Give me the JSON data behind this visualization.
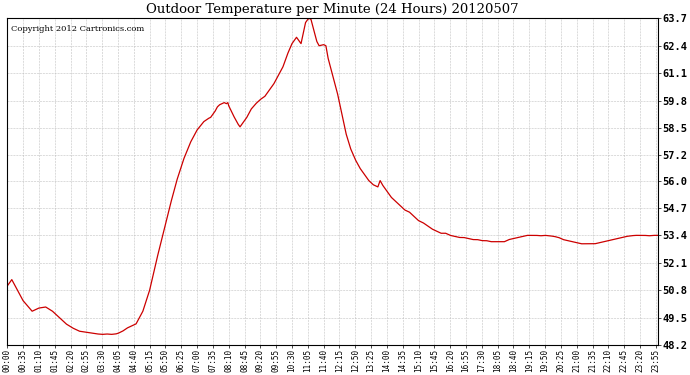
{
  "title": "Outdoor Temperature per Minute (24 Hours) 20120507",
  "copyright_text": "Copyright 2012 Cartronics.com",
  "line_color": "#cc0000",
  "background_color": "#ffffff",
  "plot_bg_color": "#ffffff",
  "grid_color": "#bbbbbb",
  "yticks": [
    48.2,
    49.5,
    50.8,
    52.1,
    53.4,
    54.7,
    56.0,
    57.2,
    58.5,
    59.8,
    61.1,
    62.4,
    63.7
  ],
  "ymin": 48.2,
  "ymax": 63.7,
  "key_points_minutes": [
    [
      0,
      51.0
    ],
    [
      10,
      51.3
    ],
    [
      20,
      50.9
    ],
    [
      35,
      50.3
    ],
    [
      55,
      49.8
    ],
    [
      70,
      49.95
    ],
    [
      85,
      50.0
    ],
    [
      100,
      49.8
    ],
    [
      115,
      49.5
    ],
    [
      130,
      49.2
    ],
    [
      145,
      49.0
    ],
    [
      160,
      48.85
    ],
    [
      175,
      48.8
    ],
    [
      190,
      48.75
    ],
    [
      200,
      48.72
    ],
    [
      210,
      48.7
    ],
    [
      220,
      48.72
    ],
    [
      230,
      48.7
    ],
    [
      240,
      48.72
    ],
    [
      245,
      48.75
    ],
    [
      255,
      48.85
    ],
    [
      265,
      49.0
    ],
    [
      275,
      49.1
    ],
    [
      285,
      49.2
    ],
    [
      300,
      49.8
    ],
    [
      315,
      50.8
    ],
    [
      330,
      52.2
    ],
    [
      345,
      53.5
    ],
    [
      360,
      54.8
    ],
    [
      375,
      56.0
    ],
    [
      390,
      57.0
    ],
    [
      405,
      57.8
    ],
    [
      420,
      58.4
    ],
    [
      435,
      58.8
    ],
    [
      445,
      58.95
    ],
    [
      450,
      59.0
    ],
    [
      460,
      59.3
    ],
    [
      465,
      59.5
    ],
    [
      470,
      59.6
    ],
    [
      475,
      59.65
    ],
    [
      480,
      59.7
    ],
    [
      485,
      59.65
    ],
    [
      488,
      59.7
    ],
    [
      490,
      59.55
    ],
    [
      500,
      59.1
    ],
    [
      510,
      58.7
    ],
    [
      515,
      58.55
    ],
    [
      520,
      58.7
    ],
    [
      530,
      59.0
    ],
    [
      540,
      59.4
    ],
    [
      550,
      59.65
    ],
    [
      560,
      59.85
    ],
    [
      570,
      60.0
    ],
    [
      580,
      60.3
    ],
    [
      590,
      60.6
    ],
    [
      600,
      61.0
    ],
    [
      610,
      61.4
    ],
    [
      620,
      62.0
    ],
    [
      630,
      62.5
    ],
    [
      640,
      62.8
    ],
    [
      650,
      62.5
    ],
    [
      655,
      63.0
    ],
    [
      660,
      63.5
    ],
    [
      665,
      63.65
    ],
    [
      668,
      63.7
    ],
    [
      672,
      63.65
    ],
    [
      675,
      63.4
    ],
    [
      680,
      63.0
    ],
    [
      685,
      62.6
    ],
    [
      690,
      62.4
    ],
    [
      700,
      62.45
    ],
    [
      705,
      62.4
    ],
    [
      710,
      61.8
    ],
    [
      720,
      61.0
    ],
    [
      730,
      60.2
    ],
    [
      740,
      59.2
    ],
    [
      750,
      58.2
    ],
    [
      760,
      57.5
    ],
    [
      770,
      57.0
    ],
    [
      780,
      56.6
    ],
    [
      790,
      56.3
    ],
    [
      800,
      56.0
    ],
    [
      810,
      55.8
    ],
    [
      820,
      55.7
    ],
    [
      825,
      56.0
    ],
    [
      830,
      55.8
    ],
    [
      840,
      55.5
    ],
    [
      850,
      55.2
    ],
    [
      860,
      55.0
    ],
    [
      870,
      54.8
    ],
    [
      880,
      54.6
    ],
    [
      890,
      54.5
    ],
    [
      900,
      54.3
    ],
    [
      910,
      54.1
    ],
    [
      920,
      54.0
    ],
    [
      930,
      53.85
    ],
    [
      940,
      53.7
    ],
    [
      950,
      53.6
    ],
    [
      960,
      53.5
    ],
    [
      970,
      53.5
    ],
    [
      980,
      53.4
    ],
    [
      990,
      53.35
    ],
    [
      1000,
      53.3
    ],
    [
      1010,
      53.3
    ],
    [
      1020,
      53.25
    ],
    [
      1030,
      53.2
    ],
    [
      1040,
      53.2
    ],
    [
      1050,
      53.15
    ],
    [
      1060,
      53.15
    ],
    [
      1070,
      53.1
    ],
    [
      1080,
      53.1
    ],
    [
      1090,
      53.1
    ],
    [
      1100,
      53.1
    ],
    [
      1110,
      53.2
    ],
    [
      1120,
      53.25
    ],
    [
      1130,
      53.3
    ],
    [
      1140,
      53.35
    ],
    [
      1150,
      53.4
    ],
    [
      1160,
      53.4
    ],
    [
      1170,
      53.4
    ],
    [
      1180,
      53.38
    ],
    [
      1190,
      53.4
    ],
    [
      1200,
      53.38
    ],
    [
      1210,
      53.35
    ],
    [
      1220,
      53.3
    ],
    [
      1230,
      53.2
    ],
    [
      1240,
      53.15
    ],
    [
      1250,
      53.1
    ],
    [
      1260,
      53.05
    ],
    [
      1270,
      53.0
    ],
    [
      1280,
      53.0
    ],
    [
      1290,
      53.0
    ],
    [
      1300,
      53.0
    ],
    [
      1310,
      53.05
    ],
    [
      1320,
      53.1
    ],
    [
      1330,
      53.15
    ],
    [
      1340,
      53.2
    ],
    [
      1350,
      53.25
    ],
    [
      1360,
      53.3
    ],
    [
      1370,
      53.35
    ],
    [
      1380,
      53.38
    ],
    [
      1390,
      53.4
    ],
    [
      1400,
      53.4
    ],
    [
      1410,
      53.4
    ],
    [
      1420,
      53.38
    ],
    [
      1430,
      53.4
    ],
    [
      1440,
      53.4
    ]
  ]
}
